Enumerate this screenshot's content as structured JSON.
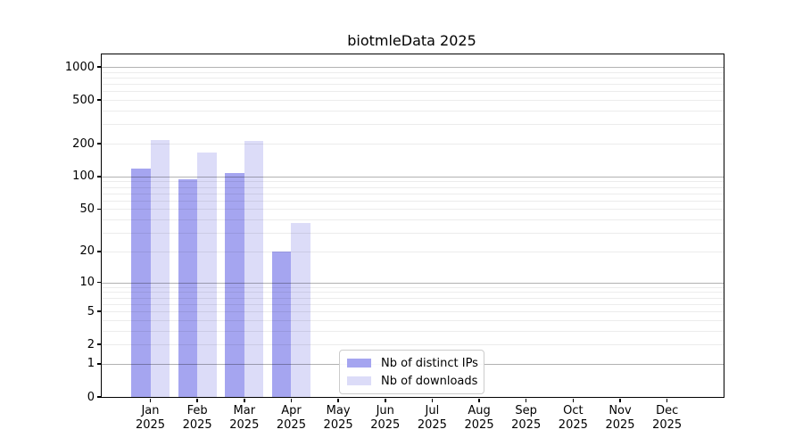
{
  "chart_data": {
    "type": "bar",
    "title": "biotmleData 2025",
    "categories": [
      "Jan",
      "Feb",
      "Mar",
      "Apr",
      "May",
      "Jun",
      "Jul",
      "Aug",
      "Sep",
      "Oct",
      "Nov",
      "Dec"
    ],
    "category_year": "2025",
    "series": [
      {
        "name": "Nb of distinct IPs",
        "color": "#a5a5f0",
        "values": [
          118,
          95,
          107,
          20,
          null,
          null,
          null,
          null,
          null,
          null,
          null,
          null
        ]
      },
      {
        "name": "Nb of downloads",
        "color": "#dcdcf8",
        "values": [
          217,
          166,
          210,
          37,
          null,
          null,
          null,
          null,
          null,
          null,
          null,
          null
        ]
      }
    ],
    "yscale": "log1p",
    "yticks": [
      0,
      1,
      2,
      5,
      10,
      20,
      50,
      100,
      200,
      500,
      1000
    ],
    "ylim": [
      0,
      1290
    ],
    "grid": {
      "minor_decades": [
        1,
        10,
        100
      ],
      "major_lines": [
        1,
        10,
        100,
        1000
      ]
    },
    "legend_position": "lower-center",
    "xlabel": "",
    "ylabel": ""
  }
}
